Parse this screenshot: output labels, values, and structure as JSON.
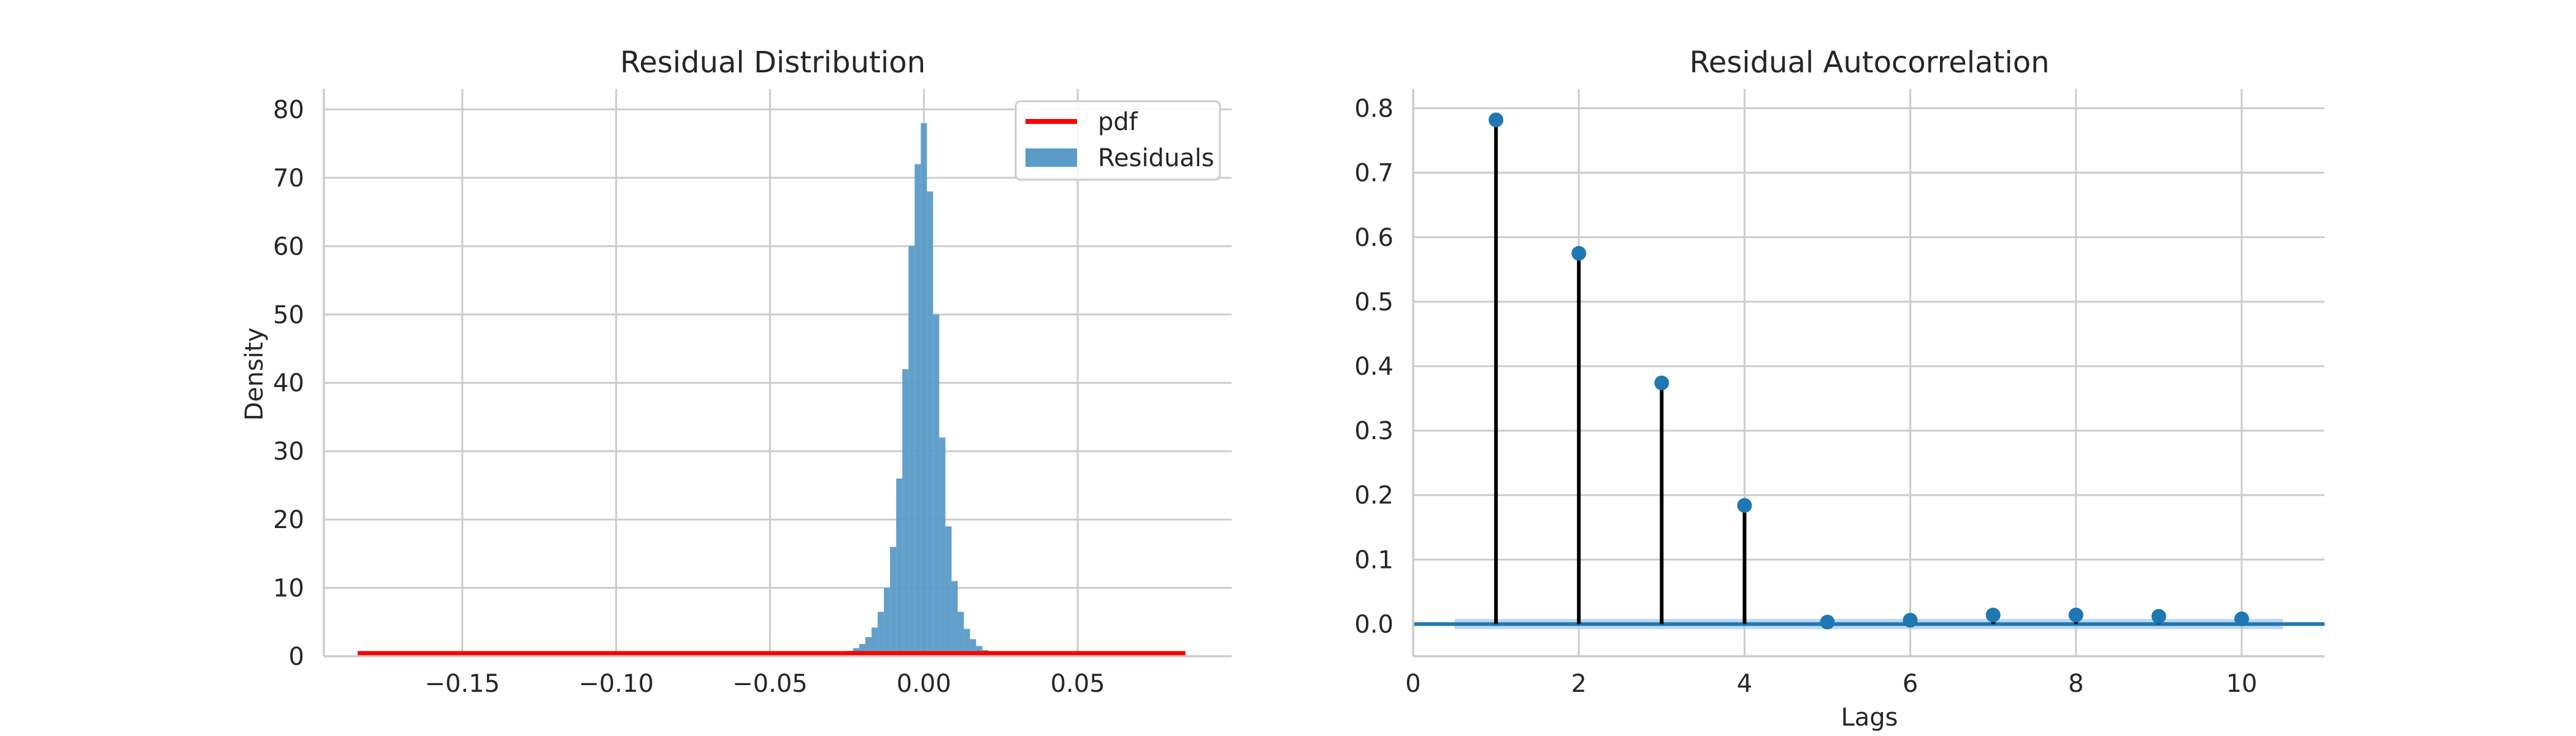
{
  "chart_data": [
    {
      "type": "bar",
      "title": "Residual Distribution",
      "xlabel": "",
      "ylabel": "Density",
      "xlim": [
        -0.195,
        0.1
      ],
      "ylim": [
        0,
        83
      ],
      "xticks": [
        -0.15,
        -0.1,
        -0.05,
        0.0,
        0.05
      ],
      "xtick_labels": [
        "−0.15",
        "−0.10",
        "−0.05",
        "0.00",
        "0.05"
      ],
      "yticks": [
        0,
        10,
        20,
        30,
        40,
        50,
        60,
        70,
        80
      ],
      "ytick_labels": [
        "0",
        "10",
        "20",
        "30",
        "40",
        "50",
        "60",
        "70",
        "80"
      ],
      "grid": true,
      "legend": {
        "position": "top-right",
        "entries": [
          "pdf",
          "Residuals"
        ]
      },
      "colors": {
        "histogram": "#5a9bc8",
        "pdf": "#ff0000"
      },
      "series": [
        {
          "name": "Residuals",
          "kind": "histogram",
          "bin_width": 0.002,
          "x": [
            -0.03,
            -0.028,
            -0.026,
            -0.024,
            -0.022,
            -0.02,
            -0.018,
            -0.016,
            -0.014,
            -0.012,
            -0.01,
            -0.008,
            -0.006,
            -0.004,
            -0.002,
            0.0,
            0.002,
            0.004,
            0.006,
            0.008,
            0.01,
            0.012,
            0.014,
            0.016,
            0.018,
            0.02,
            0.022,
            0.024
          ],
          "values": [
            0.2,
            0.3,
            0.5,
            0.8,
            1.2,
            1.8,
            2.8,
            4.2,
            6.5,
            10.0,
            16.0,
            26.0,
            42.0,
            60.0,
            72.0,
            78.0,
            68.0,
            50.0,
            32.0,
            19.0,
            11.0,
            6.5,
            4.0,
            2.5,
            1.5,
            0.9,
            0.5,
            0.2
          ]
        },
        {
          "name": "pdf",
          "kind": "line",
          "x": [
            -0.184,
            0.085
          ],
          "values": [
            0.4,
            0.4
          ]
        }
      ]
    },
    {
      "type": "stem",
      "title": "Residual Autocorrelation",
      "xlabel": "Lags",
      "ylabel": "",
      "xlim": [
        0,
        11
      ],
      "ylim": [
        -0.05,
        0.83
      ],
      "xticks": [
        0,
        2,
        4,
        6,
        8,
        10
      ],
      "xtick_labels": [
        "0",
        "2",
        "4",
        "6",
        "8",
        "10"
      ],
      "yticks": [
        0.0,
        0.1,
        0.2,
        0.3,
        0.4,
        0.5,
        0.6,
        0.7,
        0.8
      ],
      "ytick_labels": [
        "0.0",
        "0.1",
        "0.2",
        "0.3",
        "0.4",
        "0.5",
        "0.6",
        "0.7",
        "0.8"
      ],
      "grid": true,
      "colors": {
        "markers": "#1f77b4",
        "stems": "#000000",
        "band": "#a6c8e6"
      },
      "confidence_band": {
        "x": [
          0.5,
          10.5
        ],
        "half_width": 0.008
      },
      "series": [
        {
          "name": "",
          "x": [
            1,
            2,
            3,
            4,
            5,
            6,
            7,
            8,
            9,
            10
          ],
          "values": [
            0.782,
            0.575,
            0.374,
            0.184,
            0.003,
            0.006,
            0.014,
            0.014,
            0.012,
            0.008
          ]
        }
      ]
    }
  ]
}
